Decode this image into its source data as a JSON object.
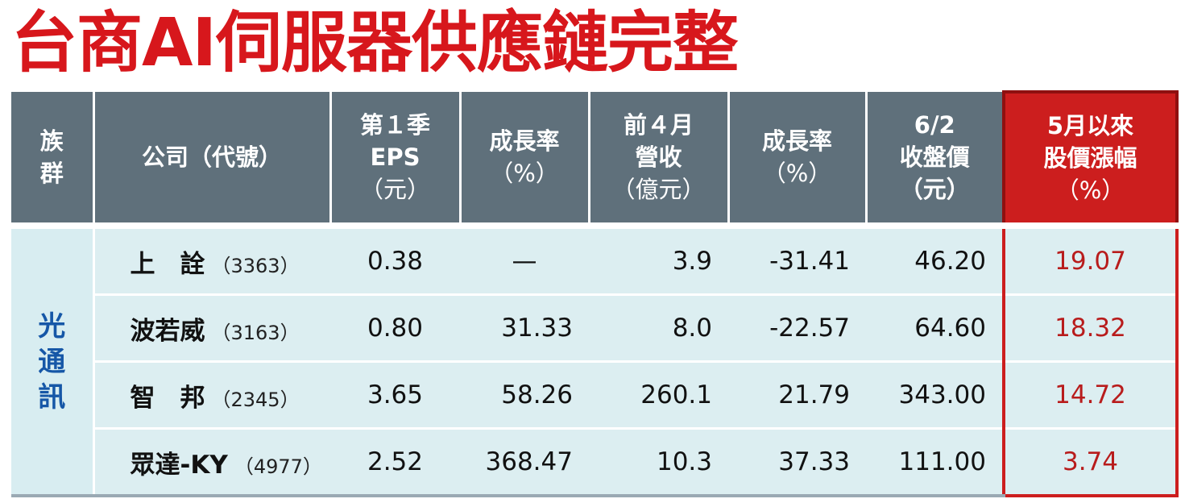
{
  "title": "台商AI伺服器供應鏈完整",
  "table": {
    "headers": [
      [
        "族",
        "群"
      ],
      [
        "公司（代號）"
      ],
      [
        "第１季",
        "EPS",
        "（元）"
      ],
      [
        "成長率",
        "（%）"
      ],
      [
        "前４月",
        "營收",
        "（億元）"
      ],
      [
        "成長率",
        "（%）"
      ],
      [
        "6/2",
        "收盤價",
        "（元）"
      ],
      [
        "5月以來",
        "股價漲幅",
        "（%）"
      ]
    ],
    "group": "光通訊",
    "rows": [
      {
        "name": "上　詮",
        "code": "（3363）",
        "eps": "0.38",
        "eps_growth": "—",
        "revenue": "3.9",
        "rev_growth": "-31.41",
        "close": "46.20",
        "change": "19.07"
      },
      {
        "name": "波若威",
        "code": "（3163）",
        "eps": "0.80",
        "eps_growth": "31.33",
        "revenue": "8.0",
        "rev_growth": "-22.57",
        "close": "64.60",
        "change": "18.32"
      },
      {
        "name": "智　邦",
        "code": "（2345）",
        "eps": "3.65",
        "eps_growth": "58.26",
        "revenue": "260.1",
        "rev_growth": "21.79",
        "close": "343.00",
        "change": "14.72"
      },
      {
        "name": "眾達-KY",
        "code": "（4977）",
        "eps": "2.52",
        "eps_growth": "368.47",
        "revenue": "10.3",
        "rev_growth": "37.33",
        "close": "111.00",
        "change": "3.74"
      }
    ]
  },
  "colors": {
    "title": "#d7171c",
    "header_bg": "#5f707b",
    "highlight": "#cc1e1e",
    "row_bg": "#dceef1",
    "group_text": "#1657a7"
  }
}
